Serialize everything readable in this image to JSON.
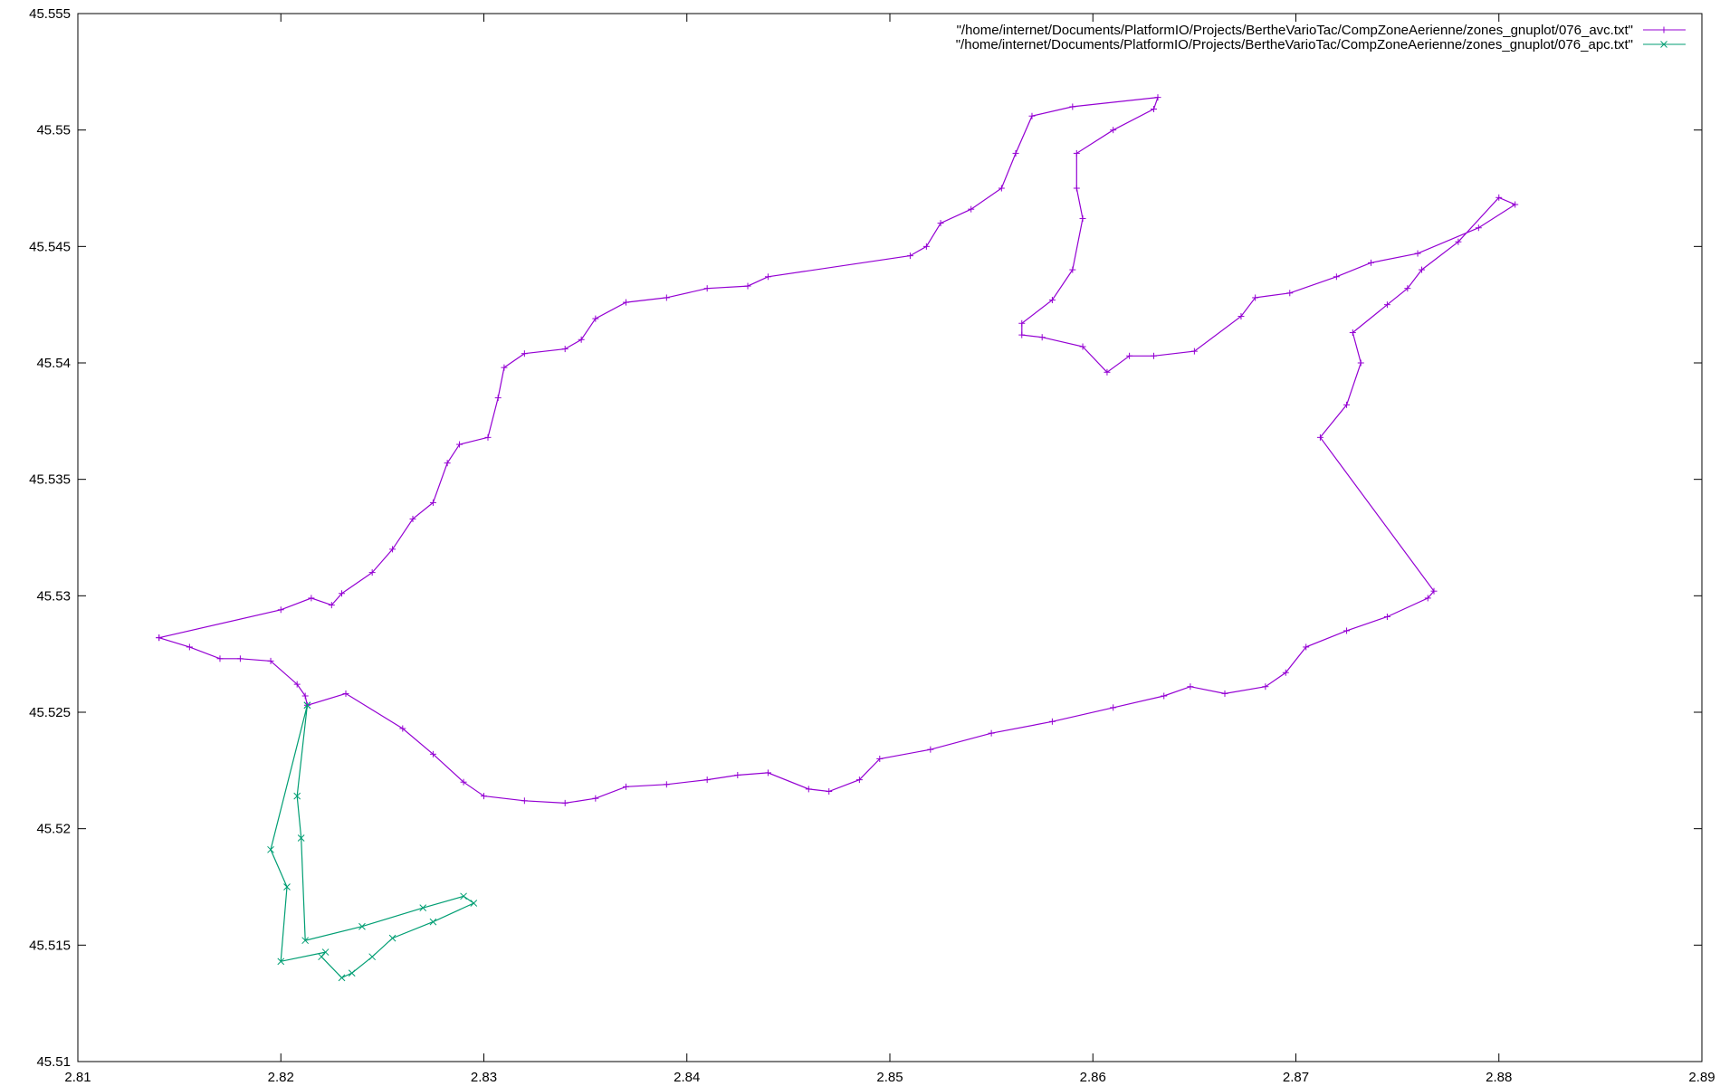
{
  "chart_data": {
    "type": "line",
    "title": "",
    "xlabel": "",
    "ylabel": "",
    "xlim": [
      2.81,
      2.89
    ],
    "ylim": [
      45.51,
      45.555
    ],
    "x_ticks": [
      "2.81",
      "2.82",
      "2.83",
      "2.84",
      "2.85",
      "2.86",
      "2.87",
      "2.88",
      "2.89"
    ],
    "y_ticks": [
      "45.51",
      "45.515",
      "45.52",
      "45.525",
      "45.53",
      "45.535",
      "45.54",
      "45.545",
      "45.55",
      "45.555"
    ],
    "grid": false,
    "legend_position": "top-right",
    "series": [
      {
        "name": "\"/home/internet/Documents/PlatformIO/Projects/BertheVarioTac/CompZoneAerienne/zones_gnuplot/076_avc.txt\"",
        "color": "#9400d3",
        "marker": "plus",
        "points": [
          [
            2.814,
            45.5282
          ],
          [
            2.8155,
            45.5278
          ],
          [
            2.817,
            45.5273
          ],
          [
            2.818,
            45.5273
          ],
          [
            2.8195,
            45.5272
          ],
          [
            2.8208,
            45.5262
          ],
          [
            2.8212,
            45.5257
          ],
          [
            2.8213,
            45.5253
          ],
          [
            2.8232,
            45.5258
          ],
          [
            2.826,
            45.5243
          ],
          [
            2.8275,
            45.5232
          ],
          [
            2.829,
            45.522
          ],
          [
            2.83,
            45.5214
          ],
          [
            2.832,
            45.5212
          ],
          [
            2.834,
            45.5211
          ],
          [
            2.8355,
            45.5213
          ],
          [
            2.837,
            45.5218
          ],
          [
            2.839,
            45.5219
          ],
          [
            2.841,
            45.5221
          ],
          [
            2.8425,
            45.5223
          ],
          [
            2.844,
            45.5224
          ],
          [
            2.846,
            45.5217
          ],
          [
            2.847,
            45.5216
          ],
          [
            2.8485,
            45.5221
          ],
          [
            2.8495,
            45.523
          ],
          [
            2.852,
            45.5234
          ],
          [
            2.855,
            45.5241
          ],
          [
            2.858,
            45.5246
          ],
          [
            2.861,
            45.5252
          ],
          [
            2.8635,
            45.5257
          ],
          [
            2.8648,
            45.5261
          ],
          [
            2.8665,
            45.5258
          ],
          [
            2.8685,
            45.5261
          ],
          [
            2.8695,
            45.5267
          ],
          [
            2.8705,
            45.5278
          ],
          [
            2.8725,
            45.5285
          ],
          [
            2.8745,
            45.5291
          ],
          [
            2.8765,
            45.5299
          ],
          [
            2.8768,
            45.5302
          ],
          [
            2.8712,
            45.5368
          ],
          [
            2.8725,
            45.5382
          ],
          [
            2.8732,
            45.54
          ],
          [
            2.8728,
            45.5413
          ],
          [
            2.8745,
            45.5425
          ],
          [
            2.8755,
            45.5432
          ],
          [
            2.8762,
            45.544
          ],
          [
            2.878,
            45.5452
          ],
          [
            2.88,
            45.5471
          ],
          [
            2.8808,
            45.5468
          ],
          [
            2.879,
            45.5458
          ],
          [
            2.876,
            45.5447
          ],
          [
            2.8737,
            45.5443
          ],
          [
            2.872,
            45.5437
          ],
          [
            2.8697,
            45.543
          ],
          [
            2.868,
            45.5428
          ],
          [
            2.8673,
            45.542
          ],
          [
            2.865,
            45.5405
          ],
          [
            2.863,
            45.5403
          ],
          [
            2.8618,
            45.5403
          ],
          [
            2.8607,
            45.5396
          ],
          [
            2.8595,
            45.5407
          ],
          [
            2.8575,
            45.5411
          ],
          [
            2.8565,
            45.5412
          ],
          [
            2.8565,
            45.5417
          ],
          [
            2.858,
            45.5427
          ],
          [
            2.859,
            45.544
          ],
          [
            2.8595,
            45.5462
          ],
          [
            2.8592,
            45.5475
          ],
          [
            2.8592,
            45.549
          ],
          [
            2.861,
            45.55
          ],
          [
            2.863,
            45.5509
          ],
          [
            2.8632,
            45.5514
          ],
          [
            2.859,
            45.551
          ],
          [
            2.857,
            45.5506
          ],
          [
            2.8562,
            45.549
          ],
          [
            2.8555,
            45.5475
          ],
          [
            2.854,
            45.5466
          ],
          [
            2.8525,
            45.546
          ],
          [
            2.8518,
            45.545
          ],
          [
            2.851,
            45.5446
          ],
          [
            2.844,
            45.5437
          ],
          [
            2.843,
            45.5433
          ],
          [
            2.841,
            45.5432
          ],
          [
            2.839,
            45.5428
          ],
          [
            2.837,
            45.5426
          ],
          [
            2.8355,
            45.5419
          ],
          [
            2.8348,
            45.541
          ],
          [
            2.834,
            45.5406
          ],
          [
            2.832,
            45.5404
          ],
          [
            2.831,
            45.5398
          ],
          [
            2.8307,
            45.5385
          ],
          [
            2.8302,
            45.5368
          ],
          [
            2.8288,
            45.5365
          ],
          [
            2.8282,
            45.5357
          ],
          [
            2.8275,
            45.534
          ],
          [
            2.8265,
            45.5333
          ],
          [
            2.8255,
            45.532
          ],
          [
            2.8245,
            45.531
          ],
          [
            2.823,
            45.5301
          ],
          [
            2.8225,
            45.5296
          ],
          [
            2.8215,
            45.5299
          ],
          [
            2.82,
            45.5294
          ],
          [
            2.814,
            45.5282
          ]
        ]
      },
      {
        "name": "\"/home/internet/Documents/PlatformIO/Projects/BertheVarioTac/CompZoneAerienne/zones_gnuplot/076_apc.txt\"",
        "color": "#009e73",
        "marker": "cross",
        "points": [
          [
            2.8213,
            45.5253
          ],
          [
            2.8208,
            45.5214
          ],
          [
            2.821,
            45.5196
          ],
          [
            2.8212,
            45.5152
          ],
          [
            2.824,
            45.5158
          ],
          [
            2.827,
            45.5166
          ],
          [
            2.829,
            45.5171
          ],
          [
            2.8295,
            45.5168
          ],
          [
            2.8275,
            45.516
          ],
          [
            2.8255,
            45.5153
          ],
          [
            2.8245,
            45.5145
          ],
          [
            2.8235,
            45.5138
          ],
          [
            2.823,
            45.5136
          ],
          [
            2.822,
            45.5145
          ],
          [
            2.8222,
            45.5147
          ],
          [
            2.82,
            45.5143
          ],
          [
            2.8203,
            45.5175
          ],
          [
            2.8195,
            45.5191
          ],
          [
            2.8213,
            45.5253
          ]
        ]
      }
    ]
  }
}
